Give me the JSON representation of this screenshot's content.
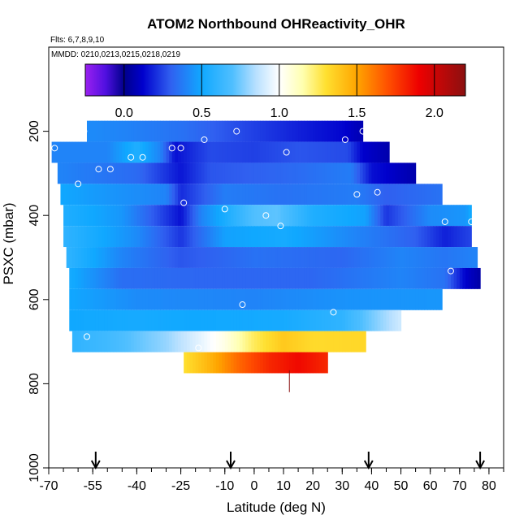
{
  "chart_data": {
    "type": "heatmap",
    "title": "ATOM2 Northbound OHReactivity_OHR",
    "flights_label": "Flts: 6,7,8,9,10",
    "dates_label": "MMDD: 0210,0213,0215,0218,0219",
    "xlabel": "Latitude (deg N)",
    "ylabel": "PSXC (mbar)",
    "xlim": [
      -70,
      85
    ],
    "ylim": [
      1000,
      0
    ],
    "x_ticks": [
      -70,
      -55,
      -40,
      -25,
      -10,
      0,
      10,
      20,
      30,
      40,
      50,
      60,
      70,
      80
    ],
    "y_ticks": [
      200,
      400,
      600,
      800,
      1000
    ],
    "colorbar": {
      "range": [
        -0.25,
        2.2
      ],
      "ticks": [
        0.0,
        0.5,
        1.0,
        1.5,
        2.0
      ],
      "tick_labels": [
        "0.0",
        "0.5",
        "1.0",
        "1.5",
        "2.0"
      ],
      "stops": [
        {
          "v": -0.25,
          "c": "#9A20F0"
        },
        {
          "v": -0.12,
          "c": "#5010E0"
        },
        {
          "v": 0.0,
          "c": "#00008B"
        },
        {
          "v": 0.12,
          "c": "#0000CD"
        },
        {
          "v": 0.3,
          "c": "#3060F0"
        },
        {
          "v": 0.5,
          "c": "#10A8FF"
        },
        {
          "v": 0.7,
          "c": "#50BFFF"
        },
        {
          "v": 0.85,
          "c": "#B8E0FF"
        },
        {
          "v": 1.0,
          "c": "#FFFFFF"
        },
        {
          "v": 1.15,
          "c": "#FFFFB0"
        },
        {
          "v": 1.3,
          "c": "#FFE030"
        },
        {
          "v": 1.5,
          "c": "#FFA500"
        },
        {
          "v": 1.7,
          "c": "#FF5000"
        },
        {
          "v": 1.9,
          "c": "#EE0000"
        },
        {
          "v": 2.2,
          "c": "#8B1010"
        }
      ]
    },
    "layers": [
      {
        "p": 200,
        "x0": -57,
        "x1": 37,
        "knots": [
          [
            -57,
            0.42
          ],
          [
            -45,
            0.4
          ],
          [
            -25,
            0.35
          ],
          [
            -5,
            0.26
          ],
          [
            15,
            0.18
          ],
          [
            30,
            0.13
          ],
          [
            37,
            0.07
          ]
        ]
      },
      {
        "p": 250,
        "x0": -69,
        "x1": 46,
        "knots": [
          [
            -69,
            0.4
          ],
          [
            -50,
            0.4
          ],
          [
            -40,
            0.55
          ],
          [
            -32,
            0.4
          ],
          [
            -27,
            0.15
          ],
          [
            -15,
            0.26
          ],
          [
            0,
            0.24
          ],
          [
            15,
            0.28
          ],
          [
            32,
            0.26
          ],
          [
            37,
            0.12
          ],
          [
            46,
            0.06
          ]
        ]
      },
      {
        "p": 300,
        "x0": -67,
        "x1": 55,
        "knots": [
          [
            -67,
            0.4
          ],
          [
            -55,
            0.37
          ],
          [
            -40,
            0.33
          ],
          [
            -25,
            0.16
          ],
          [
            -15,
            0.28
          ],
          [
            10,
            0.32
          ],
          [
            33,
            0.38
          ],
          [
            40,
            0.15
          ],
          [
            55,
            0.06
          ]
        ]
      },
      {
        "p": 350,
        "x0": -66,
        "x1": 64,
        "knots": [
          [
            -66,
            0.5
          ],
          [
            -50,
            0.45
          ],
          [
            -30,
            0.4
          ],
          [
            -25,
            0.2
          ],
          [
            -10,
            0.38
          ],
          [
            10,
            0.35
          ],
          [
            35,
            0.38
          ],
          [
            45,
            0.3
          ],
          [
            64,
            0.35
          ]
        ]
      },
      {
        "p": 400,
        "x0": -65,
        "x1": 74,
        "knots": [
          [
            -65,
            0.55
          ],
          [
            -45,
            0.45
          ],
          [
            -25,
            0.15
          ],
          [
            -18,
            0.4
          ],
          [
            0,
            0.7
          ],
          [
            8,
            0.72
          ],
          [
            20,
            0.55
          ],
          [
            38,
            0.48
          ],
          [
            45,
            0.22
          ],
          [
            60,
            0.42
          ],
          [
            72,
            0.45
          ],
          [
            74,
            0.52
          ]
        ]
      },
      {
        "p": 450,
        "x0": -65,
        "x1": 74,
        "knots": [
          [
            -65,
            0.6
          ],
          [
            -40,
            0.42
          ],
          [
            -25,
            0.22
          ],
          [
            -10,
            0.48
          ],
          [
            10,
            0.52
          ],
          [
            35,
            0.4
          ],
          [
            55,
            0.3
          ],
          [
            65,
            0.18
          ],
          [
            74,
            0.25
          ]
        ]
      },
      {
        "p": 500,
        "x0": -64,
        "x1": 76,
        "knots": [
          [
            -64,
            0.6
          ],
          [
            -45,
            0.4
          ],
          [
            -25,
            0.28
          ],
          [
            0,
            0.35
          ],
          [
            30,
            0.32
          ],
          [
            50,
            0.4
          ],
          [
            65,
            0.36
          ],
          [
            76,
            0.4
          ]
        ]
      },
      {
        "p": 550,
        "x0": -63,
        "x1": 77,
        "knots": [
          [
            -63,
            0.52
          ],
          [
            -45,
            0.34
          ],
          [
            -20,
            0.32
          ],
          [
            20,
            0.32
          ],
          [
            50,
            0.4
          ],
          [
            65,
            0.35
          ],
          [
            72,
            0.12
          ],
          [
            77,
            0.05
          ]
        ]
      },
      {
        "p": 600,
        "x0": -63,
        "x1": 64,
        "knots": [
          [
            -63,
            0.5
          ],
          [
            -40,
            0.42
          ],
          [
            0,
            0.4
          ],
          [
            30,
            0.44
          ],
          [
            64,
            0.45
          ]
        ]
      },
      {
        "p": 650,
        "x0": -63,
        "x1": 50,
        "knots": [
          [
            -63,
            0.5
          ],
          [
            -40,
            0.52
          ],
          [
            -20,
            0.5
          ],
          [
            10,
            0.52
          ],
          [
            30,
            0.6
          ],
          [
            42,
            0.78
          ],
          [
            50,
            0.9
          ]
        ]
      },
      {
        "p": 700,
        "x0": -62,
        "x1": 38,
        "knots": [
          [
            -62,
            0.6
          ],
          [
            -50,
            0.65
          ],
          [
            -30,
            0.8
          ],
          [
            -10,
            1.05
          ],
          [
            0,
            1.25
          ],
          [
            10,
            1.38
          ],
          [
            20,
            1.32
          ],
          [
            38,
            1.33
          ]
        ]
      },
      {
        "p": 750,
        "x0": -24,
        "x1": 25,
        "knots": [
          [
            -24,
            1.3
          ],
          [
            -15,
            1.45
          ],
          [
            -5,
            1.65
          ],
          [
            5,
            1.8
          ],
          [
            15,
            1.88
          ],
          [
            25,
            1.8
          ]
        ]
      }
    ],
    "observation_markers": [
      [
        -58,
        200
      ],
      [
        -68,
        240
      ],
      [
        -53,
        290
      ],
      [
        -49,
        290
      ],
      [
        -42,
        262
      ],
      [
        -38,
        262
      ],
      [
        -28,
        240
      ],
      [
        -25,
        240
      ],
      [
        -17,
        220
      ],
      [
        -6,
        200
      ],
      [
        11,
        250
      ],
      [
        31,
        220
      ],
      [
        37,
        200
      ],
      [
        -60,
        325
      ],
      [
        -24,
        370
      ],
      [
        -10,
        385
      ],
      [
        4,
        400
      ],
      [
        9,
        425
      ],
      [
        35,
        350
      ],
      [
        42,
        345
      ],
      [
        65,
        415
      ],
      [
        74,
        415
      ],
      [
        67,
        532
      ],
      [
        79,
        530
      ],
      [
        -4,
        612
      ],
      [
        27,
        630
      ],
      [
        -57,
        688
      ],
      [
        -19,
        715
      ]
    ],
    "airport_arrows": [
      -54,
      -8,
      39,
      77
    ],
    "vertical_profile_mark": {
      "lat": 12,
      "p_top": 768,
      "p_bot": 820
    }
  }
}
